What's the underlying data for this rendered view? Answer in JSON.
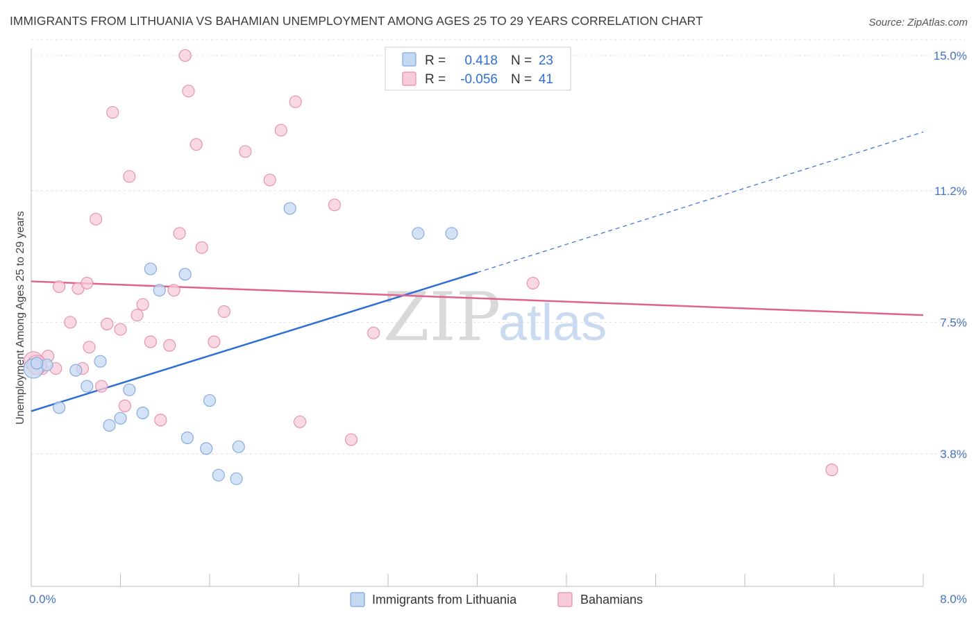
{
  "title": "IMMIGRANTS FROM LITHUANIA VS BAHAMIAN UNEMPLOYMENT AMONG AGES 25 TO 29 YEARS CORRELATION CHART",
  "source": "Source: ZipAtlas.com",
  "watermark": {
    "zip": "ZIP",
    "atlas": "atlas"
  },
  "colors": {
    "blue": "#7da7e0",
    "blue_fill": "#c5d8f2",
    "blue_line": "#2e6fd6",
    "pink": "#e98aa8",
    "pink_fill": "#f6ccd9",
    "pink_line": "#e0628c",
    "grid": "#dddddd"
  },
  "legend": {
    "rows": [
      {
        "r_label": "R =",
        "r_value": "0.418",
        "n_label": "N =",
        "n_value": "23"
      },
      {
        "r_label": "R =",
        "r_value": "-0.056",
        "n_label": "N =",
        "n_value": "41"
      }
    ]
  },
  "bottom_legend": [
    "Immigrants from Lithuania",
    "Bahamians"
  ],
  "chart_data": {
    "type": "scatter",
    "title": "IMMIGRANTS FROM LITHUANIA VS BAHAMIAN UNEMPLOYMENT AMONG AGES 25 TO 29 YEARS CORRELATION CHART",
    "xlabel": "",
    "ylabel": "Unemployment Among Ages 25 to 29 years",
    "xlim": [
      0,
      8
    ],
    "ylim": [
      0,
      15.5
    ],
    "x_tick_labels": [
      "0.0%",
      "8.0%"
    ],
    "y_ticks": [
      3.8,
      7.5,
      11.2,
      15.0
    ],
    "y_tick_labels": [
      "3.8%",
      "7.5%",
      "11.2%",
      "15.0%"
    ],
    "grid": "horizontal dashed",
    "legend_placement": "top-center",
    "series": [
      {
        "name": "Immigrants from Lithuania",
        "color": "#7da7e0",
        "points": [
          [
            0.02,
            6.2
          ],
          [
            0.14,
            6.3
          ],
          [
            0.25,
            5.1
          ],
          [
            0.4,
            6.15
          ],
          [
            0.5,
            5.7
          ],
          [
            0.62,
            6.4
          ],
          [
            0.7,
            4.6
          ],
          [
            0.8,
            4.8
          ],
          [
            0.88,
            5.6
          ],
          [
            1.0,
            4.95
          ],
          [
            1.07,
            9.0
          ],
          [
            1.15,
            8.4
          ],
          [
            1.38,
            8.85
          ],
          [
            1.4,
            4.25
          ],
          [
            1.57,
            3.95
          ],
          [
            1.6,
            5.3
          ],
          [
            1.68,
            3.2
          ],
          [
            1.84,
            3.1
          ],
          [
            1.86,
            4.0
          ],
          [
            2.32,
            10.7
          ],
          [
            3.47,
            10.0
          ],
          [
            3.77,
            10.0
          ],
          [
            0.05,
            6.35
          ]
        ],
        "trend": {
          "x": [
            0,
            4.0
          ],
          "y": [
            5.0,
            8.9
          ],
          "dashed_extension": {
            "x": [
              4.0,
              8.0
            ],
            "y": [
              8.9,
              12.85
            ]
          }
        }
      },
      {
        "name": "Bahamians",
        "color": "#e98aa8",
        "points": [
          [
            0.02,
            6.4
          ],
          [
            0.1,
            6.2
          ],
          [
            0.15,
            6.55
          ],
          [
            0.25,
            8.5
          ],
          [
            0.35,
            7.5
          ],
          [
            0.42,
            8.45
          ],
          [
            0.46,
            6.2
          ],
          [
            0.5,
            8.6
          ],
          [
            0.52,
            6.8
          ],
          [
            0.58,
            10.4
          ],
          [
            0.63,
            5.7
          ],
          [
            0.68,
            7.45
          ],
          [
            0.73,
            13.4
          ],
          [
            0.8,
            7.3
          ],
          [
            0.84,
            5.15
          ],
          [
            0.88,
            11.6
          ],
          [
            0.95,
            7.7
          ],
          [
            1.0,
            8.0
          ],
          [
            1.07,
            6.95
          ],
          [
            1.16,
            4.75
          ],
          [
            1.24,
            6.85
          ],
          [
            1.28,
            8.4
          ],
          [
            1.33,
            10.0
          ],
          [
            1.38,
            15.0
          ],
          [
            1.41,
            14.0
          ],
          [
            1.48,
            12.5
          ],
          [
            1.53,
            9.6
          ],
          [
            1.64,
            6.95
          ],
          [
            1.73,
            7.8
          ],
          [
            1.92,
            12.3
          ],
          [
            2.14,
            11.5
          ],
          [
            2.24,
            12.9
          ],
          [
            2.37,
            13.7
          ],
          [
            2.41,
            4.7
          ],
          [
            2.72,
            10.8
          ],
          [
            2.87,
            4.2
          ],
          [
            3.07,
            7.2
          ],
          [
            4.5,
            8.6
          ],
          [
            7.18,
            3.35
          ],
          [
            0.05,
            6.3
          ],
          [
            0.22,
            6.2
          ]
        ],
        "trend": {
          "x": [
            0,
            8.0
          ],
          "y": [
            8.65,
            7.7
          ]
        }
      }
    ]
  }
}
